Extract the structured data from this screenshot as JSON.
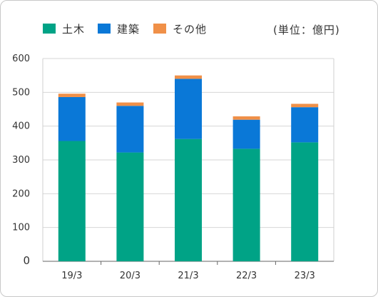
{
  "legend": [
    {
      "label": "土木",
      "color": "#00a386"
    },
    {
      "label": "建築",
      "color": "#0a78d7"
    },
    {
      "label": "その他",
      "color": "#f09048"
    }
  ],
  "unit_label": "(単位：億円)",
  "chart_data": {
    "type": "bar",
    "stacked": true,
    "categories": [
      "19/3",
      "20/3",
      "21/3",
      "22/3",
      "23/3"
    ],
    "series": [
      {
        "name": "土木",
        "color": "#00a386",
        "values": [
          356,
          322,
          362,
          333,
          352
        ]
      },
      {
        "name": "建築",
        "color": "#0a78d7",
        "values": [
          130,
          138,
          178,
          86,
          104
        ]
      },
      {
        "name": "その他",
        "color": "#f09048",
        "values": [
          10,
          10,
          10,
          10,
          10
        ]
      }
    ],
    "y_ticks": [
      "0",
      "100",
      "200",
      "300",
      "400",
      "500",
      "600"
    ],
    "ylim": [
      0,
      600
    ],
    "grid": true,
    "legend_position": "top"
  }
}
